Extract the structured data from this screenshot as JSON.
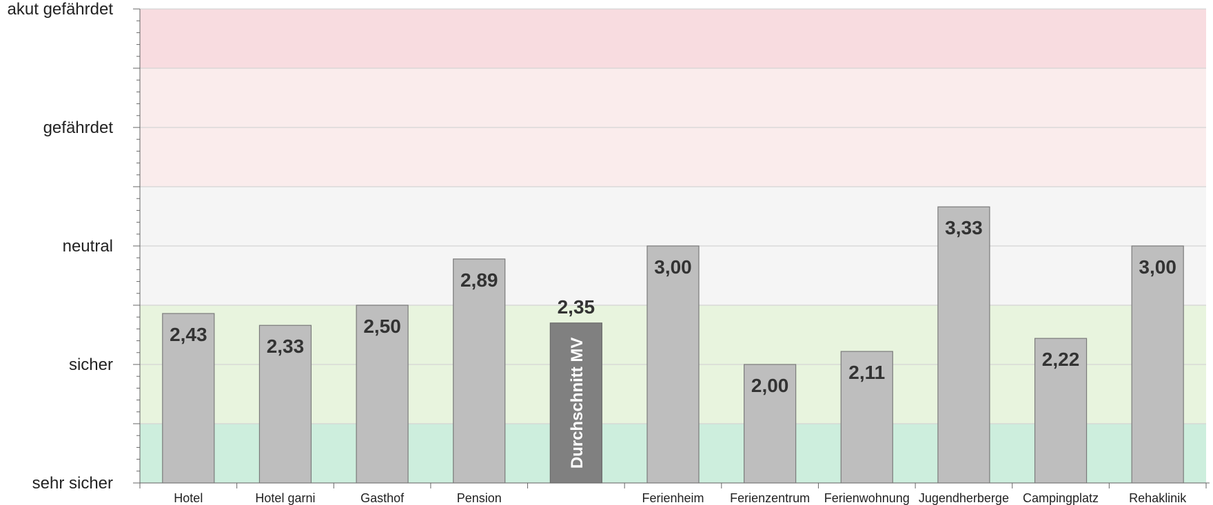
{
  "chart_data": {
    "type": "bar",
    "title": "",
    "xlabel": "",
    "ylabel": "",
    "ylim": [
      1,
      5
    ],
    "y_tick_labels": [
      {
        "value": 5,
        "label": "akut gefährdet"
      },
      {
        "value": 4,
        "label": "gefährdet"
      },
      {
        "value": 3,
        "label": "neutral"
      },
      {
        "value": 2,
        "label": "sicher"
      },
      {
        "value": 1,
        "label": "sehr sicher"
      }
    ],
    "bands": [
      {
        "from": 1.0,
        "to": 1.5,
        "color": "#cdeedd"
      },
      {
        "from": 1.5,
        "to": 2.5,
        "color": "#e8f4de"
      },
      {
        "from": 2.5,
        "to": 3.5,
        "color": "#f5f5f5"
      },
      {
        "from": 3.5,
        "to": 4.5,
        "color": "#faecec"
      },
      {
        "from": 4.5,
        "to": 5.0,
        "color": "#f8dce0"
      }
    ],
    "categories": [
      "Hotel",
      "Hotel garni",
      "Gasthof",
      "Pension",
      "",
      "Ferienheim",
      "Ferienzentrum",
      "Ferienwohnung",
      "Jugendherberge",
      "Campingplatz",
      "Rehaklinik"
    ],
    "values": [
      2.43,
      2.33,
      2.5,
      2.89,
      2.35,
      3.0,
      2.0,
      2.11,
      3.33,
      2.22,
      3.0
    ],
    "value_labels": [
      "2,43",
      "2,33",
      "2,50",
      "2,89",
      "2,35",
      "3,00",
      "2,00",
      "2,11",
      "3,33",
      "2,22",
      "3,00"
    ],
    "highlight": {
      "index": 4,
      "label": "Durchschnitt MV",
      "color": "#808080"
    },
    "bar_color": "#bebebe",
    "grid": true,
    "legend": "none"
  }
}
